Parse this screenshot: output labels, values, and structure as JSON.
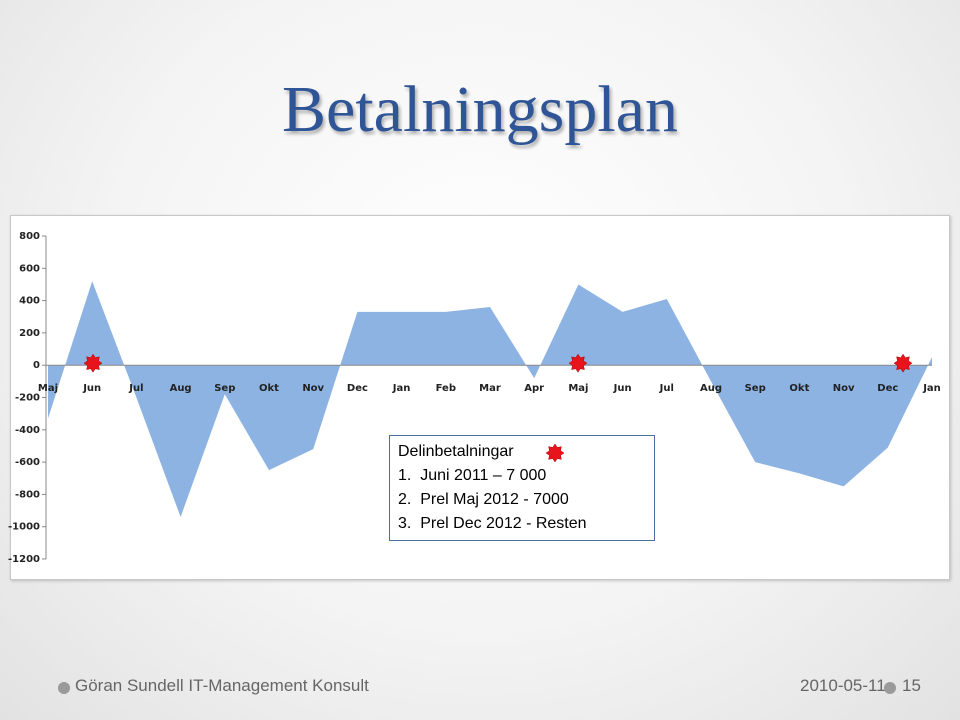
{
  "slide": {
    "title": "Betalningsplan",
    "footer_left": "Göran Sundell IT-Management Konsult",
    "date": "2010-05-11",
    "page": "15"
  },
  "chart_data": {
    "type": "area",
    "color": "#8db3e2",
    "categories": [
      "Maj",
      "Jun",
      "Jul",
      "Aug",
      "Sep",
      "Okt",
      "Nov",
      "Dec",
      "Jan",
      "Feb",
      "Mar",
      "Apr",
      "Maj",
      "Jun",
      "Jul",
      "Aug",
      "Sep",
      "Okt",
      "Nov",
      "Dec",
      "Jan"
    ],
    "values": [
      -330,
      520,
      -200,
      -940,
      -180,
      -650,
      -520,
      330,
      330,
      330,
      360,
      -80,
      500,
      330,
      410,
      -100,
      -600,
      -670,
      -750,
      -510,
      50
    ],
    "ylim": [
      -1200,
      800
    ],
    "yticks": [
      -1200,
      -1000,
      -800,
      -600,
      -400,
      -200,
      0,
      200,
      400,
      600,
      800
    ],
    "grid": false,
    "annotation": {
      "heading": "Delinbetalningar",
      "items": [
        "1.  Juni 2011 – 7 000",
        "2.  Prel Maj 2012 - 7000",
        "3.  Prel Dec 2012 - Resten"
      ]
    }
  }
}
